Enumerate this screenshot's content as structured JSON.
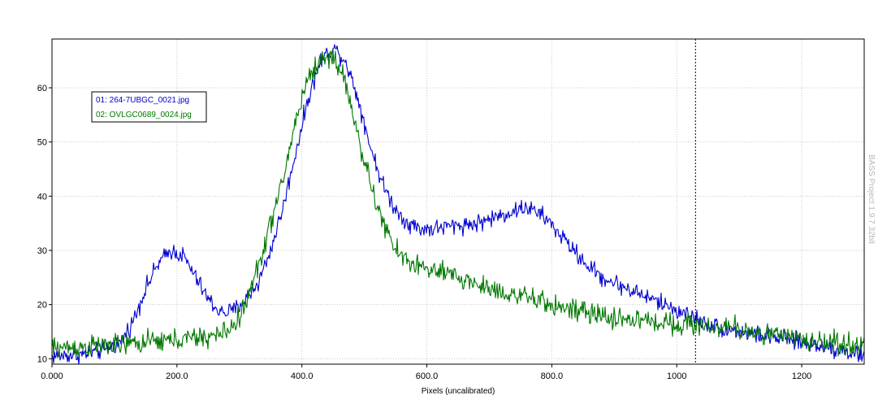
{
  "chart_data": {
    "type": "line",
    "title": "",
    "xlabel": "Pixels (uncalibrated)",
    "ylabel": "",
    "xlim": [
      0,
      1300
    ],
    "ylim": [
      9,
      69
    ],
    "grid": true,
    "x_ticks": [
      0,
      200,
      400,
      600,
      800,
      1000,
      1200
    ],
    "x_tick_labels": [
      "0.000",
      "200.0",
      "400.0",
      "600.0",
      "800.0",
      "1000",
      "1200"
    ],
    "y_ticks": [
      10,
      20,
      30,
      40,
      50,
      60
    ],
    "y_tick_labels": [
      "10",
      "20",
      "30",
      "40",
      "50",
      "60"
    ],
    "marker_x": 1030,
    "watermark": "BASS Project 1.9.7 32bit",
    "legend_position": "top-left",
    "series": [
      {
        "name": "01: 264-7UBGC_0021.jpg",
        "color": "#0000d0",
        "noise": 0.8,
        "points": [
          [
            0,
            10.5
          ],
          [
            50,
            10.8
          ],
          [
            80,
            11.5
          ],
          [
            110,
            13
          ],
          [
            130,
            17
          ],
          [
            150,
            23
          ],
          [
            170,
            27.5
          ],
          [
            190,
            30
          ],
          [
            210,
            29
          ],
          [
            230,
            25
          ],
          [
            250,
            21
          ],
          [
            270,
            18.5
          ],
          [
            290,
            18.8
          ],
          [
            310,
            21
          ],
          [
            330,
            24
          ],
          [
            350,
            30
          ],
          [
            370,
            38
          ],
          [
            390,
            48
          ],
          [
            410,
            58
          ],
          [
            430,
            65
          ],
          [
            450,
            67.5
          ],
          [
            470,
            65
          ],
          [
            490,
            58
          ],
          [
            510,
            49
          ],
          [
            530,
            42
          ],
          [
            550,
            37.5
          ],
          [
            570,
            35
          ],
          [
            590,
            34
          ],
          [
            610,
            34
          ],
          [
            640,
            34.5
          ],
          [
            680,
            35
          ],
          [
            720,
            36.5
          ],
          [
            760,
            38
          ],
          [
            790,
            36
          ],
          [
            820,
            32
          ],
          [
            850,
            28
          ],
          [
            880,
            25
          ],
          [
            910,
            23.5
          ],
          [
            940,
            22
          ],
          [
            970,
            20.5
          ],
          [
            1000,
            19
          ],
          [
            1030,
            17.5
          ],
          [
            1060,
            16
          ],
          [
            1100,
            15
          ],
          [
            1150,
            14
          ],
          [
            1200,
            13
          ],
          [
            1250,
            12
          ],
          [
            1300,
            10.5
          ]
        ]
      },
      {
        "name": "02: OVLGC0689_0024.jpg",
        "color": "#007800",
        "noise": 1.0,
        "points": [
          [
            0,
            12
          ],
          [
            50,
            12.2
          ],
          [
            100,
            12.5
          ],
          [
            150,
            13
          ],
          [
            200,
            13.5
          ],
          [
            250,
            14
          ],
          [
            270,
            14.5
          ],
          [
            290,
            16
          ],
          [
            310,
            20
          ],
          [
            330,
            27
          ],
          [
            350,
            35
          ],
          [
            370,
            43
          ],
          [
            390,
            54
          ],
          [
            410,
            62
          ],
          [
            430,
            65
          ],
          [
            450,
            66
          ],
          [
            470,
            61
          ],
          [
            490,
            51
          ],
          [
            510,
            42
          ],
          [
            530,
            35
          ],
          [
            550,
            30
          ],
          [
            570,
            28
          ],
          [
            600,
            26.5
          ],
          [
            650,
            25
          ],
          [
            700,
            23
          ],
          [
            750,
            21.5
          ],
          [
            800,
            20
          ],
          [
            850,
            18.5
          ],
          [
            900,
            17.5
          ],
          [
            950,
            17
          ],
          [
            1000,
            16.5
          ],
          [
            1050,
            16
          ],
          [
            1100,
            15.5
          ],
          [
            1150,
            14.5
          ],
          [
            1200,
            13.5
          ],
          [
            1250,
            13
          ],
          [
            1300,
            12.5
          ]
        ]
      }
    ]
  }
}
